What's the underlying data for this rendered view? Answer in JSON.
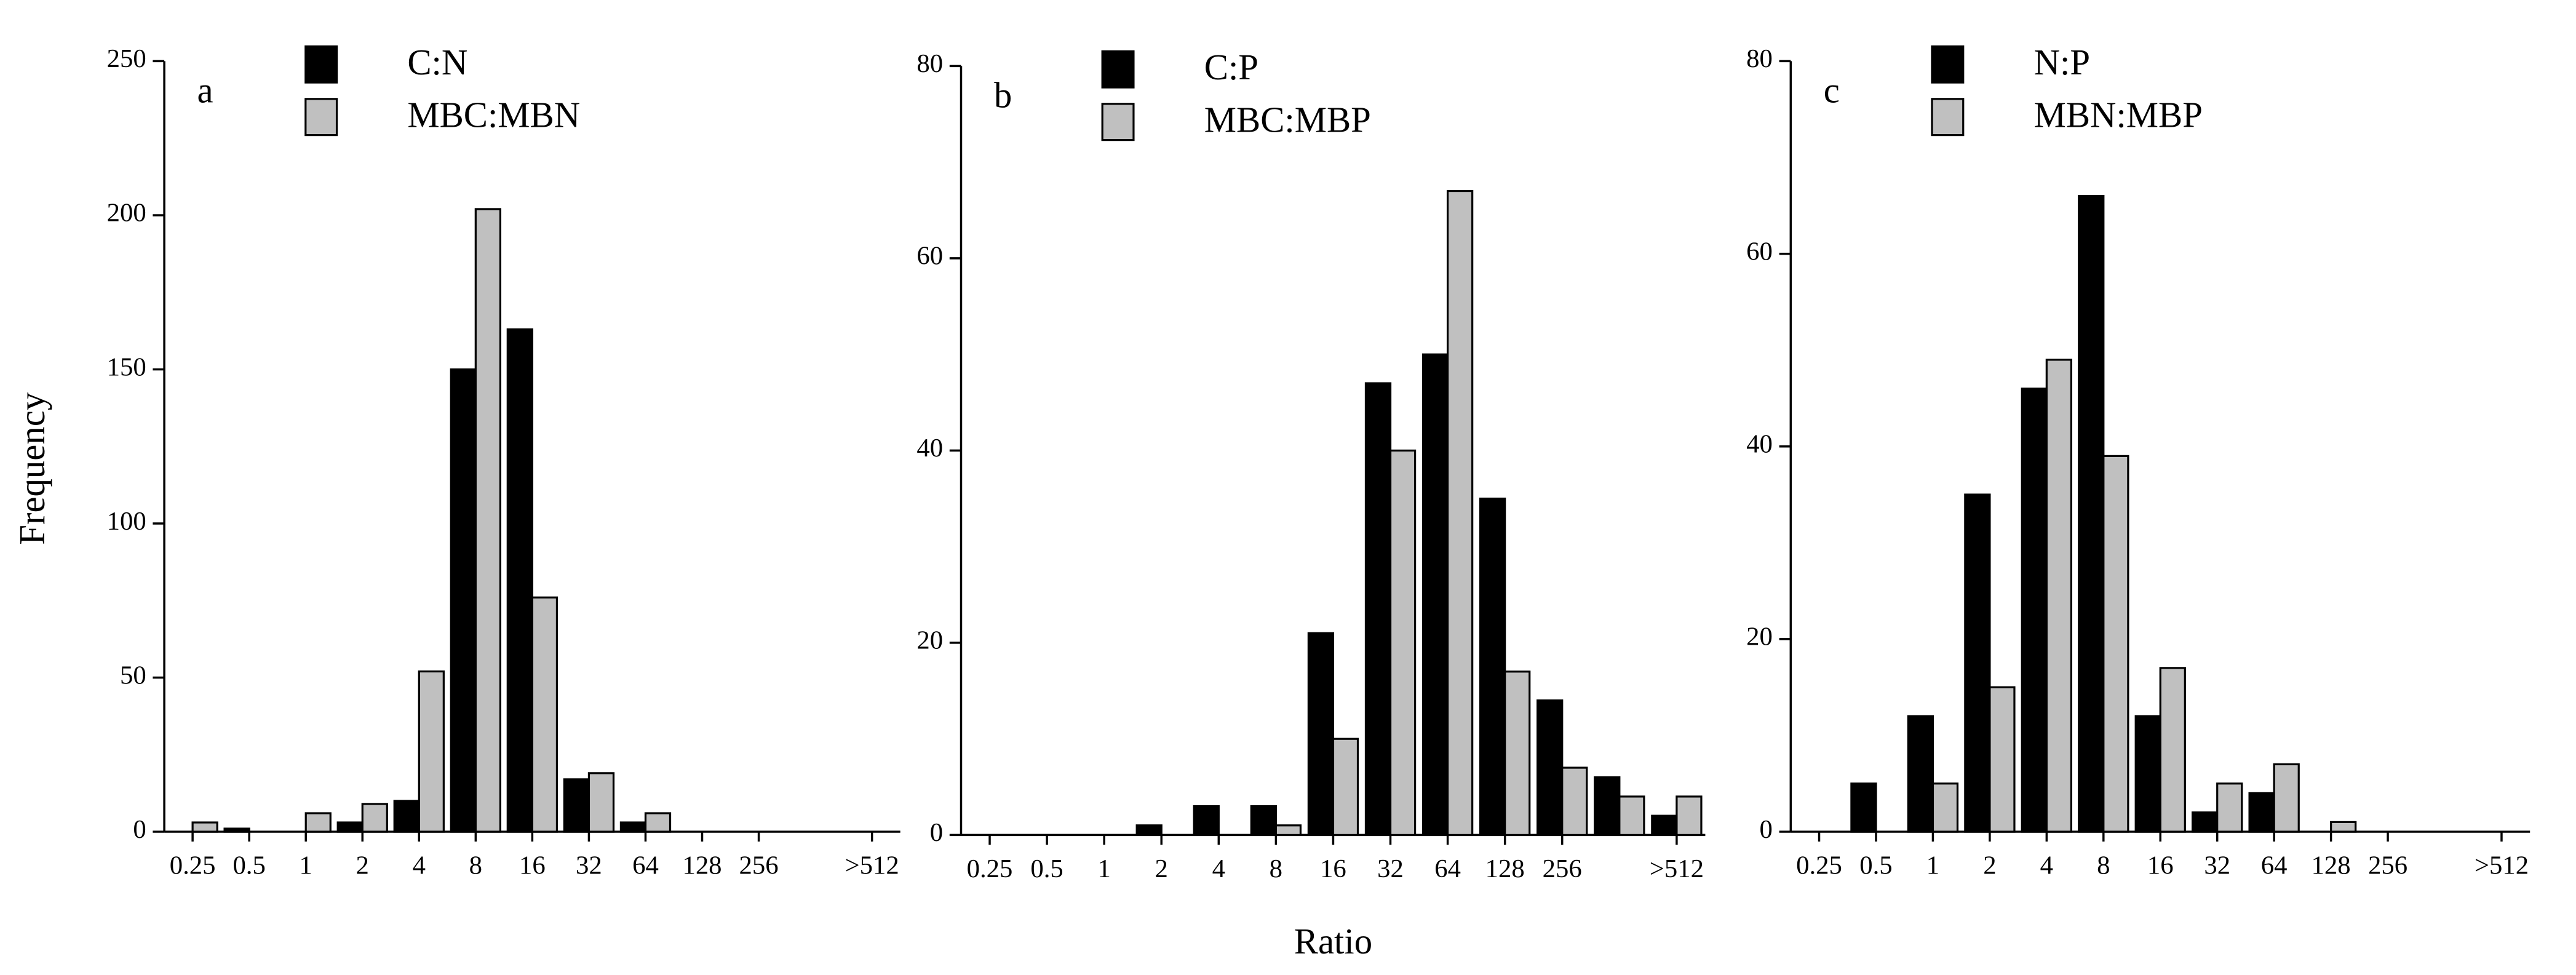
{
  "chart_data": [
    {
      "type": "bar",
      "label": "a",
      "ylabel": "Frequency",
      "categories": [
        "0.25",
        "0.5",
        "1",
        "2",
        "4",
        "8",
        "16",
        "32",
        "64",
        "128",
        "256",
        null,
        ">512"
      ],
      "series": [
        {
          "name": "C:N",
          "color": "#000000",
          "values": [
            0,
            1,
            0,
            3,
            10,
            150,
            163,
            17,
            3,
            0,
            0,
            0,
            0
          ]
        },
        {
          "name": "MBC:MBN",
          "color": "#c0c0c0",
          "values": [
            3,
            0,
            6,
            9,
            52,
            202,
            76,
            19,
            6,
            0,
            0,
            0,
            0
          ]
        }
      ],
      "ylim": [
        0,
        250
      ],
      "yticks": [
        0,
        50,
        100,
        150,
        200,
        250
      ]
    },
    {
      "type": "bar",
      "label": "b",
      "xlabel": "Ratio",
      "categories": [
        "0.25",
        "0.5",
        "1",
        "2",
        "4",
        "8",
        "16",
        "32",
        "64",
        "128",
        "256",
        null,
        ">512"
      ],
      "series": [
        {
          "name": "C:P",
          "color": "#000000",
          "values": [
            0,
            0,
            0,
            1,
            3,
            3,
            21,
            47,
            50,
            35,
            14,
            6,
            2
          ]
        },
        {
          "name": "MBC:MBP",
          "color": "#c0c0c0",
          "values": [
            0,
            0,
            0,
            0,
            0,
            1,
            10,
            40,
            67,
            17,
            7,
            4,
            4
          ]
        }
      ],
      "ylim": [
        0,
        80
      ],
      "yticks": [
        0,
        20,
        40,
        60,
        80
      ]
    },
    {
      "type": "bar",
      "label": "c",
      "categories": [
        "0.25",
        "0.5",
        "1",
        "2",
        "4",
        "8",
        "16",
        "32",
        "64",
        "128",
        "256",
        null,
        ">512"
      ],
      "series": [
        {
          "name": "N:P",
          "color": "#000000",
          "values": [
            0,
            5,
            12,
            35,
            46,
            66,
            12,
            2,
            4,
            0,
            0,
            0,
            0
          ]
        },
        {
          "name": "MBN:MBP",
          "color": "#c0c0c0",
          "values": [
            0,
            0,
            5,
            15,
            49,
            39,
            17,
            5,
            7,
            1,
            0,
            0,
            0
          ]
        }
      ],
      "ylim": [
        0,
        80
      ],
      "yticks": [
        0,
        20,
        40,
        60,
        80
      ]
    }
  ]
}
